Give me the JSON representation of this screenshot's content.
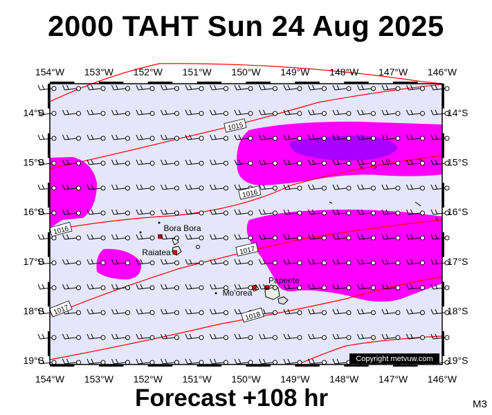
{
  "title": "2000 TAHT Sun 24 Aug 2025",
  "footer": "Forecast +108 hr",
  "code": "M3",
  "copyright": "Copyright metvuw.com",
  "axes": {
    "lon_labels": [
      "154°W",
      "153°W",
      "152°W",
      "151°W",
      "150°W",
      "149°W",
      "148°W",
      "147°W",
      "146°W"
    ],
    "lat_labels_left": [
      "14°S",
      "15°S",
      "16°S",
      "17°S",
      "18°S",
      "19°S"
    ],
    "lat_labels_right": [
      "14°S",
      "15°S",
      "16°S",
      "17°S",
      "18°S",
      "19°S"
    ]
  },
  "places": [
    {
      "name": "Bora Bora",
      "lon": -151.75,
      "lat": -16.5
    },
    {
      "name": "Raiatea",
      "lon": -151.45,
      "lat": -16.82
    },
    {
      "name": "Mo'orea",
      "lon": -149.83,
      "lat": -17.53
    },
    {
      "name": "Papeete",
      "lon": -149.57,
      "lat": -17.53
    }
  ],
  "isobars": [
    "1015",
    "1016",
    "1016",
    "1017",
    "1017",
    "1018"
  ],
  "colors": {
    "background": "#e6e6fa",
    "rain_light": "#ff00ff",
    "rain_heavy": "#aa00ff",
    "isobar": "#ff0000"
  }
}
